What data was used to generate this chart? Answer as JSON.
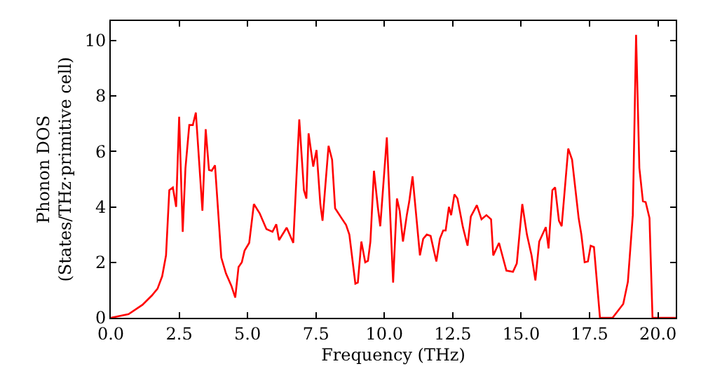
{
  "chart_data": {
    "type": "line",
    "xlabel": "Frequency (THz)",
    "ylabel": "Phonon DOS\n(States/THz·primitive cell)",
    "x": [
      0,
      0.65,
      1.16,
      1.5,
      1.71,
      1.88,
      2.02,
      2.14,
      2.27,
      2.39,
      2.5,
      2.63,
      2.73,
      2.87,
      3.0,
      3.11,
      3.35,
      3.47,
      3.59,
      3.69,
      3.81,
      4.04,
      4.21,
      4.41,
      4.55,
      4.67,
      4.79,
      4.89,
      5.06,
      5.23,
      5.44,
      5.69,
      5.91,
      6.05,
      6.15,
      6.43,
      6.67,
      6.89,
      7.06,
      7.15,
      7.23,
      7.4,
      7.52,
      7.66,
      7.74,
      7.96,
      8.09,
      8.2,
      8.43,
      8.6,
      8.72,
      8.94,
      9.03,
      9.16,
      9.3,
      9.4,
      9.49,
      9.62,
      9.76,
      9.85,
      10.09,
      10.32,
      10.46,
      10.56,
      10.68,
      10.82,
      10.91,
      11.03,
      11.3,
      11.42,
      11.55,
      11.69,
      11.86,
      11.9,
      12.03,
      12.15,
      12.24,
      12.36,
      12.44,
      12.56,
      12.67,
      12.87,
      13.04,
      13.16,
      13.38,
      13.55,
      13.73,
      13.9,
      13.98,
      14.19,
      14.46,
      14.7,
      14.84,
      15.04,
      15.21,
      15.38,
      15.52,
      15.66,
      15.9,
      16.0,
      16.14,
      16.24,
      16.38,
      16.48,
      16.72,
      16.86,
      17.1,
      17.2,
      17.32,
      17.44,
      17.54,
      17.66,
      17.88,
      18.34,
      18.73,
      18.9,
      19.08,
      19.2,
      19.32,
      19.45,
      19.55,
      19.69,
      19.8,
      20.65
    ],
    "series": [
      {
        "color": "#ff0000",
        "values": [
          0,
          0.13,
          0.47,
          0.8,
          1.05,
          1.5,
          2.25,
          4.6,
          4.7,
          4.0,
          7.25,
          3.1,
          5.4,
          6.95,
          6.95,
          7.4,
          3.86,
          6.8,
          5.33,
          5.3,
          5.5,
          2.17,
          1.6,
          1.15,
          0.73,
          1.83,
          2.0,
          2.42,
          2.7,
          4.1,
          3.77,
          3.2,
          3.1,
          3.37,
          2.8,
          3.25,
          2.7,
          7.15,
          4.6,
          4.3,
          6.65,
          5.45,
          6.05,
          4.1,
          3.5,
          6.2,
          5.7,
          3.95,
          3.6,
          3.35,
          3.0,
          1.23,
          1.27,
          2.75,
          2.0,
          2.05,
          2.75,
          5.3,
          4.0,
          3.3,
          6.5,
          1.27,
          4.3,
          3.85,
          2.75,
          3.7,
          4.2,
          5.1,
          2.25,
          2.85,
          3.0,
          2.95,
          2.2,
          2.03,
          2.85,
          3.15,
          3.15,
          4.0,
          3.7,
          4.45,
          4.3,
          3.27,
          2.6,
          3.65,
          4.06,
          3.55,
          3.7,
          3.55,
          2.25,
          2.7,
          1.7,
          1.66,
          1.96,
          4.1,
          3.0,
          2.25,
          1.35,
          2.75,
          3.27,
          2.5,
          4.6,
          4.7,
          3.5,
          3.3,
          6.1,
          5.7,
          3.6,
          3.0,
          2.0,
          2.03,
          2.6,
          2.55,
          0,
          0,
          0.5,
          1.3,
          3.7,
          10.2,
          5.4,
          4.2,
          4.17,
          3.6,
          0,
          0
        ]
      }
    ],
    "xlim": [
      0,
      20.65
    ],
    "ylim": [
      0,
      10.7
    ],
    "xticks": [
      {
        "value": 0,
        "label": "0.0"
      },
      {
        "value": 2.5,
        "label": "2.5"
      },
      {
        "value": 5,
        "label": "5.0"
      },
      {
        "value": 7.5,
        "label": "7.5"
      },
      {
        "value": 10,
        "label": "10.0"
      },
      {
        "value": 12.5,
        "label": "12.5"
      },
      {
        "value": 15,
        "label": "15.0"
      },
      {
        "value": 17.5,
        "label": "17.5"
      },
      {
        "value": 20,
        "label": "20.0"
      }
    ],
    "yticks": [
      0,
      2,
      4,
      6,
      8,
      10
    ],
    "marker": "none",
    "line_style": "solid"
  }
}
